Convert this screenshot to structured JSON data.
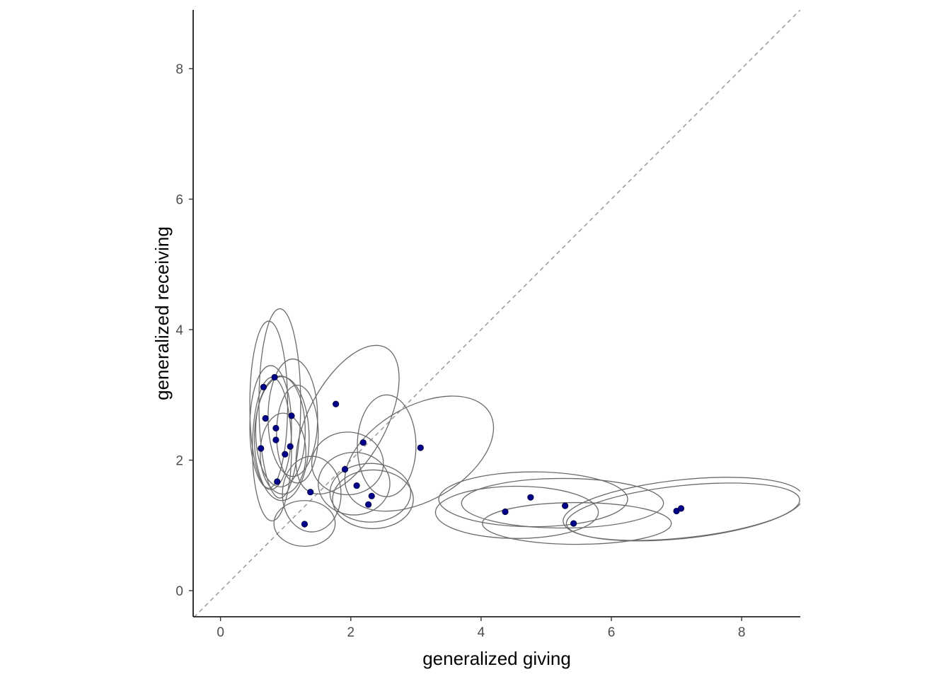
{
  "chart_data": {
    "type": "scatter",
    "title": "",
    "xlabel": "generalized giving",
    "ylabel": "generalized receiving",
    "xlim": [
      -0.42,
      8.9
    ],
    "ylim": [
      -0.4,
      8.9
    ],
    "xticks": [
      0,
      2,
      4,
      6,
      8
    ],
    "yticks": [
      0,
      2,
      4,
      6,
      8
    ],
    "grid": false,
    "legend": "none",
    "reference_line": {
      "type": "identity",
      "style": "dashed",
      "color": "#9e9e9e"
    },
    "point_color": "#00008b",
    "ellipse_color": "#6b6b6b",
    "points": [
      {
        "x": 0.66,
        "y": 3.12
      },
      {
        "x": 0.83,
        "y": 3.27
      },
      {
        "x": 0.69,
        "y": 2.64
      },
      {
        "x": 0.85,
        "y": 2.49
      },
      {
        "x": 0.85,
        "y": 2.31
      },
      {
        "x": 0.62,
        "y": 2.18
      },
      {
        "x": 1.07,
        "y": 2.21
      },
      {
        "x": 0.99,
        "y": 2.09
      },
      {
        "x": 1.09,
        "y": 2.68
      },
      {
        "x": 0.87,
        "y": 1.67
      },
      {
        "x": 1.77,
        "y": 2.86
      },
      {
        "x": 2.19,
        "y": 2.27
      },
      {
        "x": 1.91,
        "y": 1.86
      },
      {
        "x": 1.38,
        "y": 1.51
      },
      {
        "x": 2.09,
        "y": 1.61
      },
      {
        "x": 2.32,
        "y": 1.45
      },
      {
        "x": 2.27,
        "y": 1.32
      },
      {
        "x": 1.29,
        "y": 1.02
      },
      {
        "x": 3.07,
        "y": 2.19
      },
      {
        "x": 4.37,
        "y": 1.21
      },
      {
        "x": 4.76,
        "y": 1.43
      },
      {
        "x": 5.29,
        "y": 1.3
      },
      {
        "x": 5.42,
        "y": 1.03
      },
      {
        "x": 7.0,
        "y": 1.22
      },
      {
        "x": 7.07,
        "y": 1.26
      }
    ],
    "ellipses": [
      {
        "cx": 0.74,
        "cy": 2.85,
        "rx": 0.29,
        "ry": 1.28
      },
      {
        "cx": 0.91,
        "cy": 2.87,
        "rx": 0.32,
        "ry": 1.45
      },
      {
        "cx": 0.77,
        "cy": 2.5,
        "rx": 0.32,
        "ry": 0.95
      },
      {
        "cx": 0.94,
        "cy": 2.33,
        "rx": 0.42,
        "ry": 0.95
      },
      {
        "cx": 0.79,
        "cy": 2.17,
        "rx": 0.3,
        "ry": 1.1
      },
      {
        "cx": 0.92,
        "cy": 2.44,
        "rx": 0.38,
        "ry": 0.85
      },
      {
        "cx": 1.11,
        "cy": 2.65,
        "rx": 0.38,
        "ry": 0.9
      },
      {
        "cx": 0.96,
        "cy": 2.1,
        "rx": 0.35,
        "ry": 0.62
      },
      {
        "cx": 1.18,
        "cy": 2.4,
        "rx": 0.32,
        "ry": 0.75
      },
      {
        "cx": 1.4,
        "cy": 1.48,
        "rx": 0.45,
        "ry": 0.58
      },
      {
        "cx": 1.29,
        "cy": 1.03,
        "rx": 0.47,
        "ry": 0.35
      },
      {
        "cx": 1.95,
        "cy": 2.62,
        "rx": 0.6,
        "ry": 1.25,
        "angle": 28
      },
      {
        "cx": 1.95,
        "cy": 1.95,
        "rx": 0.55,
        "ry": 0.48
      },
      {
        "cx": 2.05,
        "cy": 1.64,
        "rx": 0.55,
        "ry": 0.48
      },
      {
        "cx": 2.3,
        "cy": 1.5,
        "rx": 0.62,
        "ry": 0.45
      },
      {
        "cx": 2.34,
        "cy": 1.4,
        "rx": 0.62,
        "ry": 0.45
      },
      {
        "cx": 2.55,
        "cy": 2.22,
        "rx": 0.45,
        "ry": 0.78
      },
      {
        "cx": 3.05,
        "cy": 2.1,
        "rx": 1.25,
        "ry": 0.72,
        "angle": -30
      },
      {
        "cx": 4.8,
        "cy": 1.4,
        "rx": 1.45,
        "ry": 0.42
      },
      {
        "cx": 4.55,
        "cy": 1.2,
        "rx": 1.25,
        "ry": 0.4
      },
      {
        "cx": 5.25,
        "cy": 1.34,
        "rx": 1.55,
        "ry": 0.38
      },
      {
        "cx": 5.47,
        "cy": 1.03,
        "rx": 1.45,
        "ry": 0.32
      },
      {
        "cx": 7.1,
        "cy": 1.21,
        "rx": 1.8,
        "ry": 0.4,
        "angle": -6
      },
      {
        "cx": 7.1,
        "cy": 1.25,
        "rx": 1.85,
        "ry": 0.45,
        "angle": -6
      }
    ]
  }
}
